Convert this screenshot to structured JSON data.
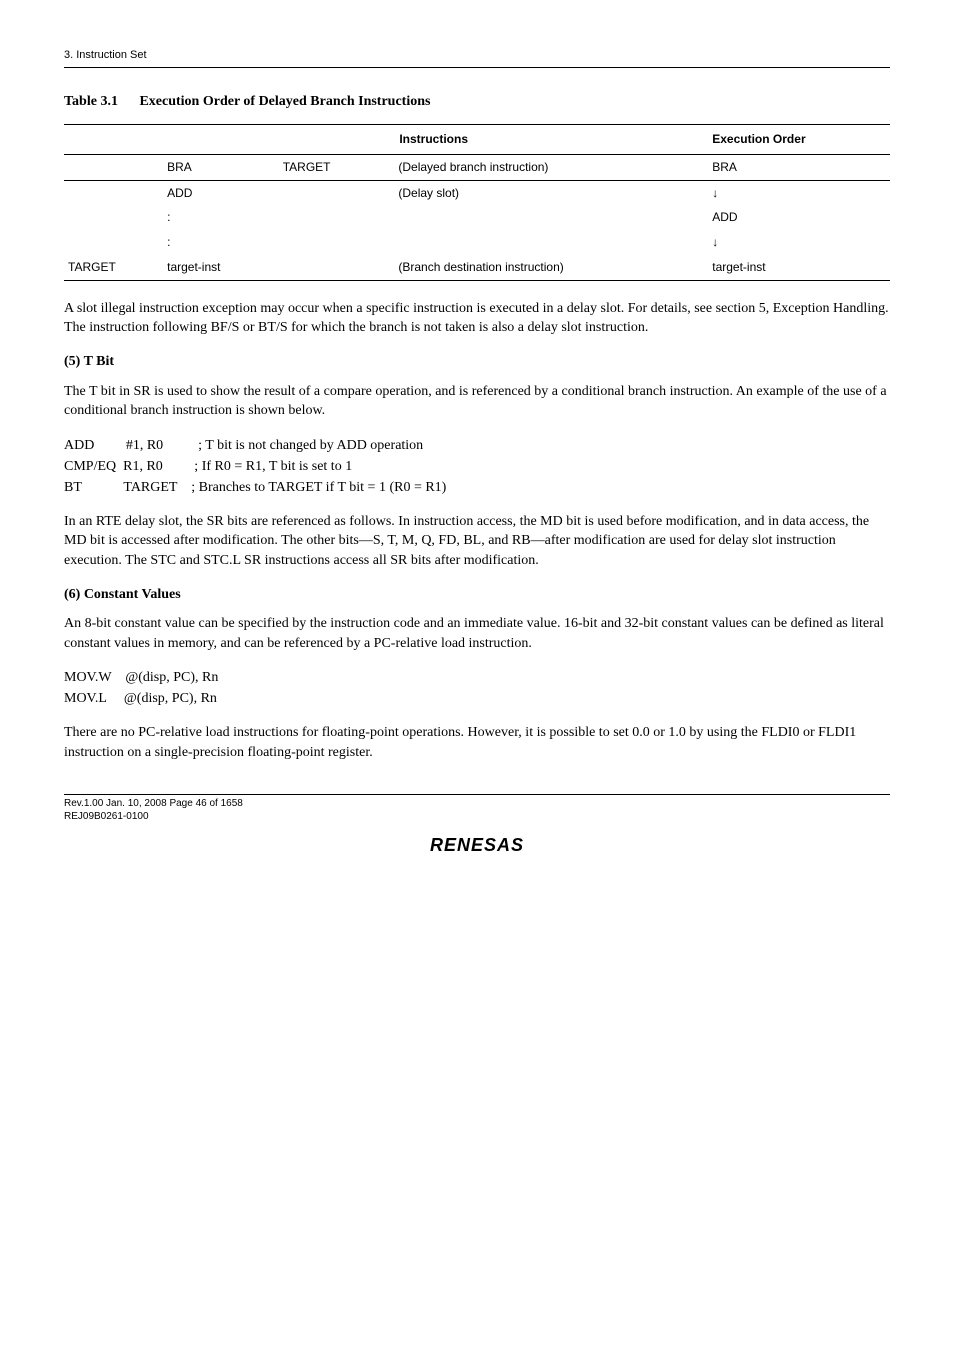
{
  "header": {
    "section": "3.   Instruction Set"
  },
  "table_title": {
    "number": "Table 3.1",
    "caption": "Execution Order of Delayed Branch Instructions"
  },
  "exec_table": {
    "headers": {
      "instructions": "Instructions",
      "exec_order": "Execution Order"
    },
    "rows": [
      {
        "c0": "",
        "c1": "BRA",
        "c2": "TARGET",
        "c3": "(Delayed branch instruction)",
        "c4": "BRA",
        "cls": "subhead"
      },
      {
        "c0": "",
        "c1": "ADD",
        "c2": "",
        "c3": "(Delay slot)",
        "c4": "↓",
        "cls": ""
      },
      {
        "c0": "",
        "c1": ":",
        "c2": "",
        "c3": "",
        "c4": "ADD",
        "cls": ""
      },
      {
        "c0": "",
        "c1": ":",
        "c2": "",
        "c3": "",
        "c4": "↓",
        "cls": ""
      },
      {
        "c0": "TARGET",
        "c1": "target-inst",
        "c2": "",
        "c3": "(Branch destination instruction)",
        "c4": "target-inst",
        "cls": "lastrow"
      }
    ],
    "col_widths": [
      "12%",
      "14%",
      "14%",
      "38%",
      "22%"
    ]
  },
  "para1": "A slot illegal instruction exception may occur when a specific instruction is executed in a delay slot. For details, see section 5, Exception Handling. The instruction following BF/S or BT/S for which the branch is not taken is also a delay slot instruction.",
  "sub5": "(5)    T Bit",
  "para2": "The T bit in SR is used to show the result of a compare operation, and is referenced by a conditional branch instruction. An example of the use of a conditional branch instruction is shown below.",
  "code1_lines": [
    "ADD         #1, R0          ; T bit is not changed by ADD operation",
    "CMP/EQ  R1, R0         ; If R0 = R1, T bit is set to 1",
    "BT            TARGET    ; Branches to TARGET if T bit = 1 (R0 = R1)"
  ],
  "para3": "In an RTE delay slot, the SR bits are referenced as follows. In instruction access, the MD bit is used before modification, and in data access, the MD bit is accessed after modification. The other bits—S, T, M, Q, FD, BL, and RB—after modification are used for delay slot instruction execution. The STC and STC.L SR instructions access all SR bits after modification.",
  "sub6": "(6)    Constant Values",
  "para4": "An 8-bit constant value can be specified by the instruction code and an immediate value. 16-bit and 32-bit constant values can be defined as literal constant values in memory, and can be referenced by a PC-relative load instruction.",
  "code2_lines": [
    "MOV.W    @(disp, PC), Rn",
    "MOV.L     @(disp, PC), Rn"
  ],
  "para5": "There are no PC-relative load instructions for floating-point operations. However, it is possible to set 0.0 or 1.0 by using the FLDI0 or FLDI1 instruction on a single-precision floating-point register.",
  "footer": {
    "line1": "Rev.1.00  Jan. 10, 2008  Page 46 of 1658",
    "line2": "REJ09B0261-0100",
    "logo": "RENESAS"
  }
}
